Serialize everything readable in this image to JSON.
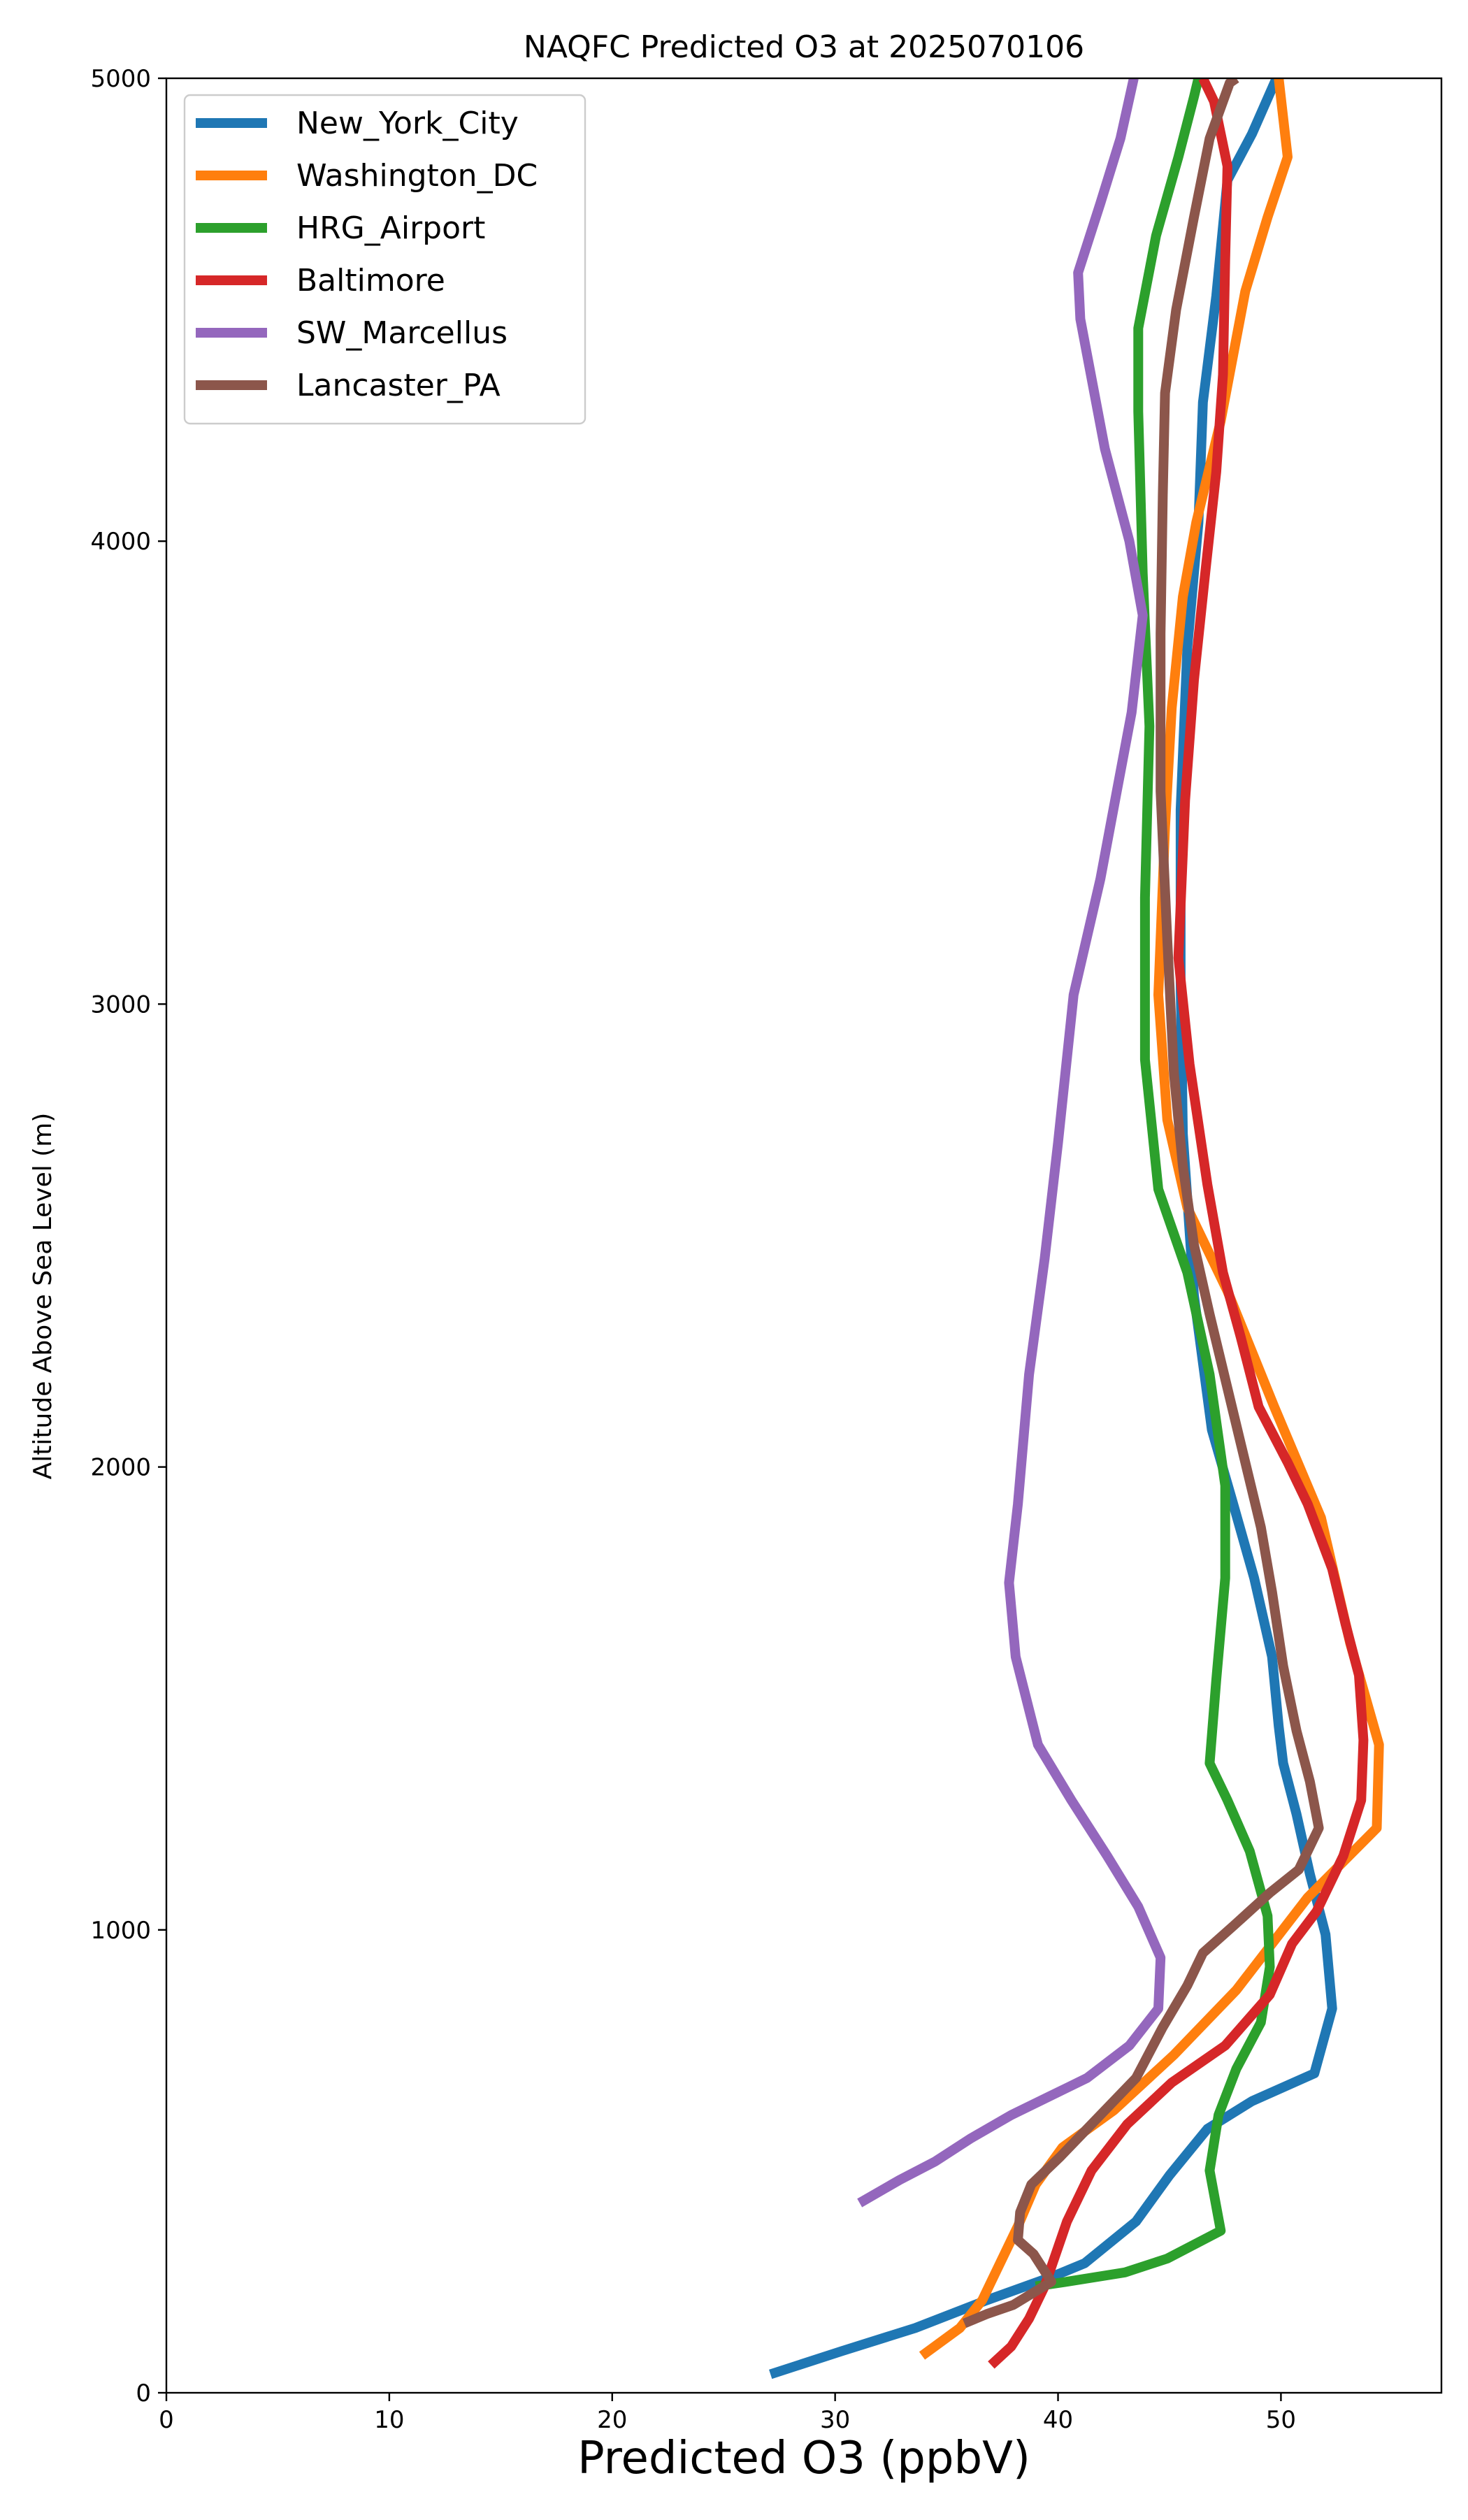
{
  "chart_data": {
    "type": "line",
    "title": "NAQFC Predicted O3 at 2025070106",
    "xlabel": "Predicted O3 (ppbV)",
    "ylabel": "Altitude Above Sea Level (m)",
    "xlim": [
      0,
      57.2
    ],
    "ylim": [
      0,
      5000
    ],
    "xticks": [
      0,
      10,
      20,
      30,
      40,
      50
    ],
    "yticks": [
      0,
      1000,
      2000,
      3000,
      4000,
      5000
    ],
    "grid": false,
    "legend_position": "upper-left",
    "series": [
      {
        "name": "New_York_City",
        "color": "#1f77b4",
        "points": [
          [
            27.1,
            40
          ],
          [
            30.3,
            90
          ],
          [
            33.6,
            140
          ],
          [
            36.8,
            200
          ],
          [
            39.7,
            250
          ],
          [
            41.2,
            280
          ],
          [
            43.5,
            370
          ],
          [
            45.0,
            470
          ],
          [
            46.7,
            570
          ],
          [
            48.7,
            630
          ],
          [
            51.5,
            690
          ],
          [
            52.3,
            830
          ],
          [
            52.0,
            990
          ],
          [
            51.3,
            1120
          ],
          [
            50.7,
            1250
          ],
          [
            50.1,
            1360
          ],
          [
            49.9,
            1440
          ],
          [
            49.6,
            1590
          ],
          [
            48.8,
            1760
          ],
          [
            47.8,
            1930
          ],
          [
            46.9,
            2080
          ],
          [
            46.1,
            2370
          ],
          [
            45.6,
            2720
          ],
          [
            45.5,
            3050
          ],
          [
            45.5,
            3420
          ],
          [
            45.8,
            3770
          ],
          [
            46.3,
            4040
          ],
          [
            46.5,
            4300
          ],
          [
            47.1,
            4530
          ],
          [
            47.6,
            4780
          ],
          [
            48.7,
            4880
          ],
          [
            49.8,
            5000
          ]
        ]
      },
      {
        "name": "Washington_DC",
        "color": "#ff7f0e",
        "points": [
          [
            33.9,
            80
          ],
          [
            35.6,
            140
          ],
          [
            36.6,
            200
          ],
          [
            37.4,
            280
          ],
          [
            38.2,
            360
          ],
          [
            39.0,
            450
          ],
          [
            40.2,
            530
          ],
          [
            42.5,
            610
          ],
          [
            45.2,
            730
          ],
          [
            48.0,
            870
          ],
          [
            51.2,
            1070
          ],
          [
            54.3,
            1220
          ],
          [
            54.4,
            1400
          ],
          [
            53.1,
            1620
          ],
          [
            51.8,
            1890
          ],
          [
            49.7,
            2130
          ],
          [
            47.6,
            2380
          ],
          [
            45.8,
            2560
          ],
          [
            44.9,
            2750
          ],
          [
            44.5,
            3020
          ],
          [
            44.8,
            3380
          ],
          [
            45.1,
            3640
          ],
          [
            45.6,
            3880
          ],
          [
            46.2,
            4040
          ],
          [
            47.3,
            4260
          ],
          [
            48.4,
            4540
          ],
          [
            49.4,
            4700
          ],
          [
            50.3,
            4830
          ],
          [
            49.9,
            5000
          ]
        ]
      },
      {
        "name": "HRG_Airport",
        "color": "#2ca02c",
        "points": [
          [
            39.0,
            230
          ],
          [
            40.4,
            240
          ],
          [
            43.0,
            260
          ],
          [
            44.9,
            290
          ],
          [
            47.3,
            350
          ],
          [
            46.8,
            480
          ],
          [
            47.2,
            600
          ],
          [
            48.0,
            700
          ],
          [
            49.1,
            800
          ],
          [
            49.5,
            920
          ],
          [
            49.4,
            1030
          ],
          [
            48.6,
            1170
          ],
          [
            47.6,
            1280
          ],
          [
            46.8,
            1360
          ],
          [
            47.1,
            1540
          ],
          [
            47.5,
            1760
          ],
          [
            47.5,
            1960
          ],
          [
            46.8,
            2200
          ],
          [
            45.8,
            2420
          ],
          [
            44.5,
            2600
          ],
          [
            43.9,
            2880
          ],
          [
            43.9,
            3230
          ],
          [
            44.1,
            3600
          ],
          [
            43.8,
            3930
          ],
          [
            43.6,
            4280
          ],
          [
            43.6,
            4460
          ],
          [
            44.4,
            4660
          ],
          [
            45.4,
            4830
          ],
          [
            46.1,
            4960
          ],
          [
            46.3,
            5000
          ]
        ]
      },
      {
        "name": "Baltimore",
        "color": "#d62728",
        "points": [
          [
            37.0,
            60
          ],
          [
            37.9,
            100
          ],
          [
            38.7,
            160
          ],
          [
            39.4,
            230
          ],
          [
            40.4,
            370
          ],
          [
            41.5,
            480
          ],
          [
            43.1,
            580
          ],
          [
            45.1,
            670
          ],
          [
            47.5,
            750
          ],
          [
            49.5,
            860
          ],
          [
            50.5,
            970
          ],
          [
            51.6,
            1040
          ],
          [
            52.8,
            1160
          ],
          [
            53.6,
            1280
          ],
          [
            53.7,
            1410
          ],
          [
            53.5,
            1550
          ],
          [
            52.9,
            1660
          ],
          [
            52.3,
            1780
          ],
          [
            51.2,
            1920
          ],
          [
            50.3,
            2010
          ],
          [
            49.0,
            2130
          ],
          [
            48.2,
            2280
          ],
          [
            47.4,
            2420
          ],
          [
            46.7,
            2610
          ],
          [
            45.9,
            2870
          ],
          [
            45.4,
            3100
          ],
          [
            45.7,
            3440
          ],
          [
            46.1,
            3700
          ],
          [
            46.6,
            3930
          ],
          [
            47.1,
            4150
          ],
          [
            47.4,
            4360
          ],
          [
            47.5,
            4610
          ],
          [
            47.6,
            4810
          ],
          [
            47.0,
            4950
          ],
          [
            46.5,
            5000
          ]
        ]
      },
      {
        "name": "SW_Marcellus",
        "color": "#9467bd",
        "points": [
          [
            31.1,
            410
          ],
          [
            32.9,
            460
          ],
          [
            34.5,
            500
          ],
          [
            36.1,
            550
          ],
          [
            37.9,
            600
          ],
          [
            39.6,
            640
          ],
          [
            41.3,
            680
          ],
          [
            43.2,
            750
          ],
          [
            44.5,
            830
          ],
          [
            44.6,
            940
          ],
          [
            43.6,
            1050
          ],
          [
            42.2,
            1160
          ],
          [
            40.6,
            1280
          ],
          [
            39.1,
            1400
          ],
          [
            38.1,
            1590
          ],
          [
            37.8,
            1750
          ],
          [
            38.2,
            1920
          ],
          [
            38.7,
            2200
          ],
          [
            39.4,
            2450
          ],
          [
            40.0,
            2700
          ],
          [
            40.7,
            3020
          ],
          [
            41.9,
            3270
          ],
          [
            42.6,
            3450
          ],
          [
            43.3,
            3630
          ],
          [
            43.8,
            3840
          ],
          [
            43.2,
            4000
          ],
          [
            42.1,
            4200
          ],
          [
            41.0,
            4480
          ],
          [
            40.9,
            4580
          ],
          [
            41.9,
            4730
          ],
          [
            42.8,
            4870
          ],
          [
            43.4,
            5000
          ]
        ]
      },
      {
        "name": "Lancaster_PA",
        "color": "#8c564b",
        "points": [
          [
            35.8,
            150
          ],
          [
            36.8,
            170
          ],
          [
            38.0,
            190
          ],
          [
            39.7,
            240
          ],
          [
            38.9,
            300
          ],
          [
            38.2,
            330
          ],
          [
            38.3,
            390
          ],
          [
            38.8,
            450
          ],
          [
            40.1,
            510
          ],
          [
            41.7,
            590
          ],
          [
            43.5,
            680
          ],
          [
            44.7,
            790
          ],
          [
            45.8,
            880
          ],
          [
            46.5,
            950
          ],
          [
            47.9,
            1010
          ],
          [
            49.5,
            1080
          ],
          [
            50.8,
            1130
          ],
          [
            51.7,
            1220
          ],
          [
            51.3,
            1320
          ],
          [
            50.7,
            1430
          ],
          [
            50.1,
            1570
          ],
          [
            49.6,
            1730
          ],
          [
            49.1,
            1870
          ],
          [
            48.4,
            2010
          ],
          [
            47.6,
            2170
          ],
          [
            46.8,
            2330
          ],
          [
            46.1,
            2480
          ],
          [
            45.6,
            2650
          ],
          [
            45.2,
            2850
          ],
          [
            44.9,
            3140
          ],
          [
            44.6,
            3460
          ],
          [
            44.6,
            3800
          ],
          [
            44.7,
            4100
          ],
          [
            44.8,
            4320
          ],
          [
            45.3,
            4500
          ],
          [
            46.1,
            4700
          ],
          [
            46.8,
            4870
          ],
          [
            47.7,
            4990
          ],
          [
            48.0,
            5000
          ]
        ]
      }
    ]
  }
}
